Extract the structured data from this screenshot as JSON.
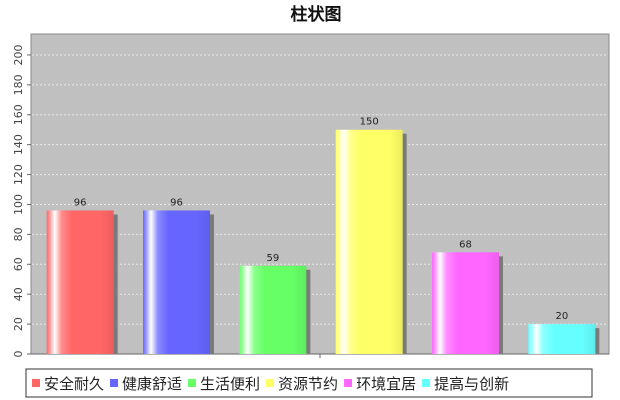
{
  "chart_data": {
    "type": "bar",
    "title": "柱状图",
    "categories": [
      "安全耐久",
      "健康舒适",
      "生活便利",
      "资源节约",
      "环境宜居",
      "提高与创新"
    ],
    "values": [
      96,
      96,
      59,
      150,
      68,
      20
    ],
    "colors": [
      "#ff6666",
      "#6666ff",
      "#66ff66",
      "#ffff66",
      "#ff66ff",
      "#66ffff"
    ],
    "ylim": [
      0,
      210
    ],
    "yticks": [
      0,
      20,
      40,
      60,
      80,
      100,
      120,
      140,
      160,
      180,
      200
    ],
    "xlabel": "",
    "ylabel": "",
    "grid": true,
    "legend": "bottom",
    "background": "#c0c0c0"
  }
}
